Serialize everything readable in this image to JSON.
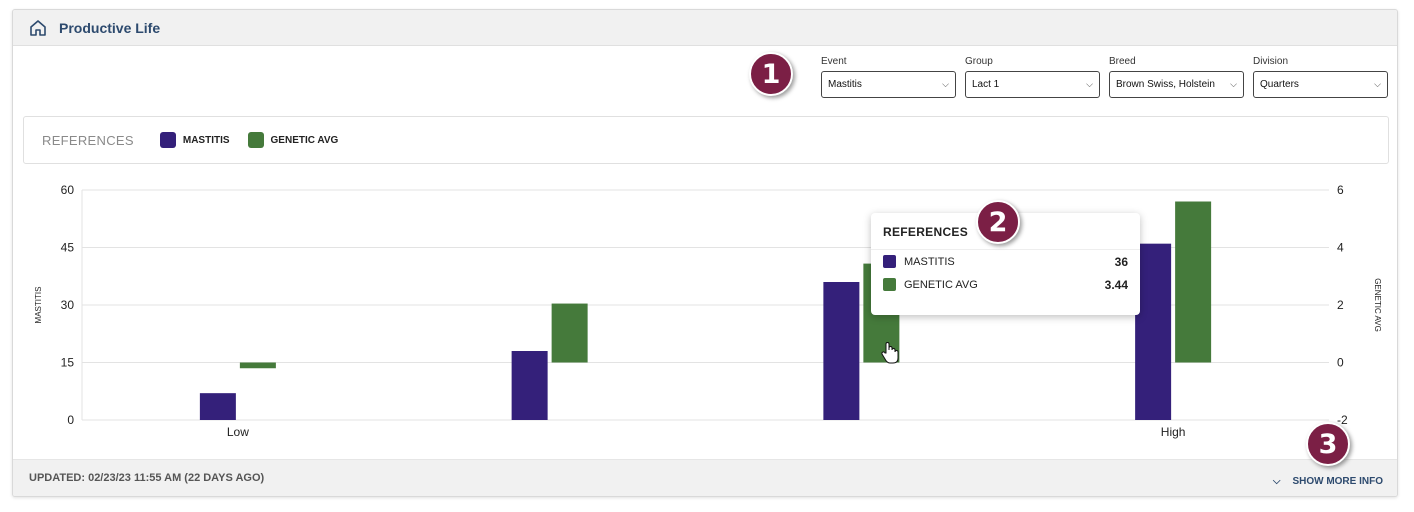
{
  "header": {
    "title": "Productive Life"
  },
  "filters": [
    {
      "label": "Event",
      "value": "Mastitis"
    },
    {
      "label": "Group",
      "value": "Lact 1"
    },
    {
      "label": "Breed",
      "value": "Brown Swiss, Holstein"
    },
    {
      "label": "Division",
      "value": "Quarters"
    }
  ],
  "badges": [
    "1",
    "2",
    "3"
  ],
  "legend": {
    "title": "REFERENCES",
    "items": [
      {
        "name": "MASTITIS",
        "color": "#34207a"
      },
      {
        "name": "GENETIC AVG",
        "color": "#457a3b"
      }
    ]
  },
  "tooltip": {
    "title": "REFERENCES",
    "rows": [
      {
        "name": "MASTITIS",
        "value": "36",
        "color": "#34207a"
      },
      {
        "name": "GENETIC AVG",
        "value": "3.44",
        "color": "#457a3b"
      }
    ]
  },
  "chart_data": {
    "type": "bar",
    "categories": [
      "Low",
      "",
      "",
      "High"
    ],
    "series": [
      {
        "name": "MASTITIS",
        "axis": "left",
        "color": "#34207a",
        "values": [
          7,
          18,
          36,
          46
        ]
      },
      {
        "name": "GENETIC AVG",
        "axis": "right",
        "color": "#457a3b",
        "values": [
          -0.2,
          2.05,
          3.44,
          5.6
        ]
      }
    ],
    "ylabel": "MASTITIS",
    "y2label": "GENETIC AVG",
    "ylim": [
      0,
      60
    ],
    "y2lim": [
      -2,
      6
    ],
    "yticks": [
      "60",
      "45",
      "30",
      "15",
      "0"
    ],
    "y2ticks": [
      "6",
      "4",
      "2",
      "0",
      "-2"
    ],
    "grid": true
  },
  "footer": {
    "updated": "UPDATED: 02/23/23 11:55 AM (22 DAYS AGO)",
    "show_more": "SHOW MORE INFO"
  }
}
